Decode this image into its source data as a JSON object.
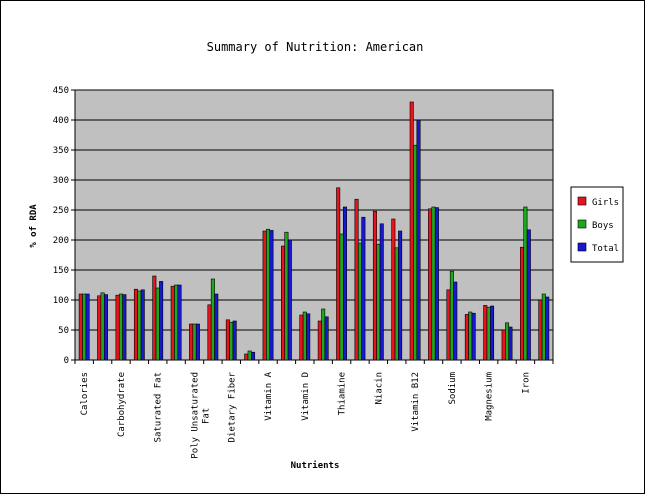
{
  "chart_data": {
    "type": "bar",
    "title": "Summary of Nutrition: American",
    "xlabel": "Nutrients",
    "ylabel": "% of RDA",
    "ylim": [
      0,
      450
    ],
    "yticks": [
      0,
      50,
      100,
      150,
      200,
      250,
      300,
      350,
      400,
      450
    ],
    "grid": true,
    "legend_position": "right",
    "categories": [
      "Calories",
      "",
      "Carbohydrate",
      "",
      "Saturated Fat",
      "",
      "Poly Unsaturated Fat",
      "",
      "Dietary Fiber",
      "",
      "Vitamin A",
      "",
      "Vitamin D",
      "",
      "Thiamine",
      "",
      "Niacin",
      "",
      "Vitamin B12",
      "",
      "Sodium",
      "",
      "Magnesium",
      "",
      "Iron",
      ""
    ],
    "series": [
      {
        "name": "Girls",
        "color": "#e8131b",
        "values": [
          110,
          107,
          108,
          118,
          140,
          123,
          60,
          92,
          67,
          10,
          215,
          190,
          75,
          65,
          287,
          268,
          248,
          235,
          430,
          252,
          117,
          76,
          91,
          50,
          188,
          100
        ]
      },
      {
        "name": "Boys",
        "color": "#1fa81f",
        "values": [
          110,
          112,
          110,
          115,
          120,
          125,
          60,
          135,
          63,
          15,
          218,
          213,
          80,
          85,
          210,
          195,
          193,
          187,
          358,
          255,
          148,
          80,
          88,
          62,
          255,
          110
        ]
      },
      {
        "name": "Total",
        "color": "#1818d0",
        "values": [
          110,
          109,
          109,
          117,
          131,
          125,
          60,
          110,
          65,
          13,
          216,
          200,
          77,
          72,
          255,
          238,
          227,
          215,
          400,
          254,
          130,
          78,
          90,
          55,
          217,
          105
        ]
      }
    ],
    "plot_background": "#c0c0c0"
  }
}
